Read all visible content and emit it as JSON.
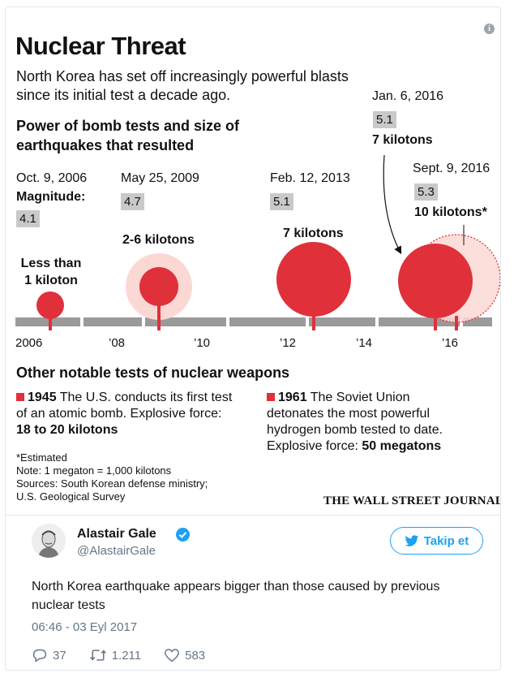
{
  "infographic": {
    "info_icon": "i",
    "title": "Nuclear Threat",
    "subtitle": "North Korea has set off increasingly powerful blasts since its initial test a decade ago.",
    "section_title": "Power of bomb tests and size of earthquakes that resulted",
    "magnitude_label": "Magnitude:",
    "tests": [
      {
        "date": "Oct. 9, 2006",
        "magnitude": "4.1",
        "yield": "Less than 1 kiloton"
      },
      {
        "date": "May 25, 2009",
        "magnitude": "4.7",
        "yield": "2-6 kilotons"
      },
      {
        "date": "Feb. 12, 2013",
        "magnitude": "5.1",
        "yield": "7 kilotons"
      },
      {
        "date": "Jan. 6, 2016",
        "magnitude": "5.1",
        "yield": "7 kilotons"
      },
      {
        "date": "Sept. 9, 2016",
        "magnitude": "5.3",
        "yield": "10 kilotons*"
      }
    ],
    "axis_labels": [
      "2006",
      "’08",
      "’10",
      "’12",
      "’14",
      "’16"
    ],
    "other_title": "Other notable tests of nuclear weapons",
    "notable": [
      {
        "year": "1945",
        "text": "The U.S. conducts its first test of an atomic bomb.",
        "force_label": "Explosive force:",
        "force": "18 to 20 kilotons"
      },
      {
        "year": "1961",
        "text": "The Soviet Union detonates the most powerful hydrogen bomb tested to date.",
        "force_label": "Explosive force:",
        "force": "50 megatons"
      }
    ],
    "footnotes": [
      "*Estimated",
      "Note: 1 megaton = 1,000 kilotons",
      "Sources: South Korean defense ministry;",
      "U.S. Geological Survey"
    ],
    "credit": "THE WALL STREET JOURNAL.",
    "colors": {
      "bomb_red": "#e0303a",
      "halo_pink": "#fbd8d4",
      "axis_gray": "#9a9a9a",
      "mag_box": "#c9c9c9"
    }
  },
  "tweet": {
    "name": "Alastair Gale",
    "handle": "@AlastairGale",
    "follow_label": "Takip et",
    "text": "North Korea earthquake appears bigger than those caused by previous nuclear tests",
    "timestamp": "06:46 - 03 Eyl 2017",
    "replies": "37",
    "retweets": "1.211",
    "likes": "583",
    "colors": {
      "twitter_blue": "#1da1f2",
      "muted": "#657786"
    }
  }
}
